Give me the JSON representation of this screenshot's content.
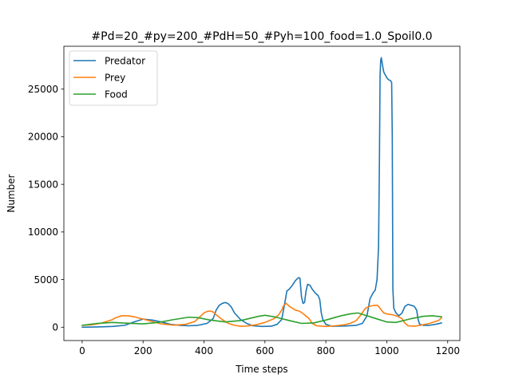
{
  "chart_data": {
    "type": "line",
    "title": "#Pd=20_#py=200_#PdH=50_#Pyh=100_food=1.0_Spoil0.0",
    "xlabel": "Time steps",
    "ylabel": "Number",
    "xlim": [
      -60,
      1240
    ],
    "ylim": [
      -1400,
      29500
    ],
    "x_ticks": [
      0,
      200,
      400,
      600,
      800,
      1000,
      1200
    ],
    "y_ticks": [
      0,
      5000,
      10000,
      15000,
      20000,
      25000
    ],
    "grid": false,
    "legend_position": "upper left",
    "series": [
      {
        "name": "Predator",
        "color": "#1f77b4",
        "points": [
          [
            0,
            0
          ],
          [
            50,
            30
          ],
          [
            100,
            80
          ],
          [
            140,
            200
          ],
          [
            170,
            550
          ],
          [
            200,
            850
          ],
          [
            230,
            750
          ],
          [
            260,
            550
          ],
          [
            290,
            300
          ],
          [
            320,
            200
          ],
          [
            350,
            150
          ],
          [
            380,
            200
          ],
          [
            410,
            400
          ],
          [
            430,
            900
          ],
          [
            440,
            1800
          ],
          [
            450,
            2300
          ],
          [
            460,
            2500
          ],
          [
            470,
            2600
          ],
          [
            480,
            2450
          ],
          [
            490,
            2100
          ],
          [
            500,
            1500
          ],
          [
            520,
            800
          ],
          [
            540,
            400
          ],
          [
            560,
            150
          ],
          [
            590,
            80
          ],
          [
            620,
            100
          ],
          [
            640,
            300
          ],
          [
            655,
            800
          ],
          [
            665,
            2500
          ],
          [
            672,
            3800
          ],
          [
            680,
            4000
          ],
          [
            690,
            4400
          ],
          [
            700,
            4900
          ],
          [
            710,
            5200
          ],
          [
            715,
            5150
          ],
          [
            720,
            3200
          ],
          [
            725,
            2500
          ],
          [
            730,
            2600
          ],
          [
            735,
            3800
          ],
          [
            740,
            4500
          ],
          [
            748,
            4400
          ],
          [
            755,
            4000
          ],
          [
            765,
            3600
          ],
          [
            775,
            3300
          ],
          [
            780,
            2900
          ],
          [
            785,
            1500
          ],
          [
            790,
            800
          ],
          [
            800,
            300
          ],
          [
            820,
            100
          ],
          [
            860,
            120
          ],
          [
            900,
            200
          ],
          [
            920,
            400
          ],
          [
            935,
            1200
          ],
          [
            945,
            3000
          ],
          [
            955,
            3600
          ],
          [
            962,
            3900
          ],
          [
            968,
            5000
          ],
          [
            973,
            8500
          ],
          [
            976,
            18000
          ],
          [
            978,
            26500
          ],
          [
            980,
            28000
          ],
          [
            982,
            28300
          ],
          [
            986,
            27500
          ],
          [
            990,
            26800
          ],
          [
            995,
            26500
          ],
          [
            1000,
            26200
          ],
          [
            1005,
            26000
          ],
          [
            1012,
            25900
          ],
          [
            1016,
            25700
          ],
          [
            1018,
            20000
          ],
          [
            1020,
            4000
          ],
          [
            1023,
            2000
          ],
          [
            1030,
            1500
          ],
          [
            1040,
            1200
          ],
          [
            1050,
            1500
          ],
          [
            1060,
            2200
          ],
          [
            1070,
            2400
          ],
          [
            1080,
            2300
          ],
          [
            1090,
            2200
          ],
          [
            1098,
            1800
          ],
          [
            1103,
            800
          ],
          [
            1108,
            300
          ],
          [
            1120,
            200
          ],
          [
            1140,
            200
          ],
          [
            1160,
            300
          ],
          [
            1180,
            450
          ]
        ]
      },
      {
        "name": "Prey",
        "color": "#ff7f0e",
        "points": [
          [
            0,
            200
          ],
          [
            30,
            250
          ],
          [
            60,
            400
          ],
          [
            80,
            600
          ],
          [
            100,
            800
          ],
          [
            110,
            1000
          ],
          [
            130,
            1200
          ],
          [
            150,
            1200
          ],
          [
            170,
            1100
          ],
          [
            200,
            850
          ],
          [
            230,
            600
          ],
          [
            260,
            350
          ],
          [
            300,
            220
          ],
          [
            340,
            300
          ],
          [
            370,
            600
          ],
          [
            390,
            1200
          ],
          [
            400,
            1500
          ],
          [
            410,
            1650
          ],
          [
            420,
            1700
          ],
          [
            430,
            1600
          ],
          [
            440,
            1300
          ],
          [
            460,
            800
          ],
          [
            480,
            400
          ],
          [
            500,
            200
          ],
          [
            520,
            100
          ],
          [
            540,
            120
          ],
          [
            570,
            250
          ],
          [
            600,
            500
          ],
          [
            630,
            900
          ],
          [
            645,
            1300
          ],
          [
            655,
            1800
          ],
          [
            662,
            2300
          ],
          [
            670,
            2500
          ],
          [
            680,
            2200
          ],
          [
            690,
            2000
          ],
          [
            700,
            1800
          ],
          [
            712,
            1700
          ],
          [
            720,
            1550
          ],
          [
            730,
            1300
          ],
          [
            745,
            900
          ],
          [
            755,
            400
          ],
          [
            770,
            150
          ],
          [
            800,
            80
          ],
          [
            830,
            150
          ],
          [
            860,
            250
          ],
          [
            880,
            400
          ],
          [
            900,
            700
          ],
          [
            915,
            1300
          ],
          [
            930,
            2000
          ],
          [
            945,
            2200
          ],
          [
            960,
            2300
          ],
          [
            970,
            2300
          ],
          [
            980,
            1900
          ],
          [
            990,
            1500
          ],
          [
            1000,
            1400
          ],
          [
            1010,
            1350
          ],
          [
            1020,
            1300
          ],
          [
            1035,
            1150
          ],
          [
            1050,
            900
          ],
          [
            1060,
            400
          ],
          [
            1070,
            150
          ],
          [
            1090,
            100
          ],
          [
            1110,
            200
          ],
          [
            1140,
            400
          ],
          [
            1170,
            700
          ],
          [
            1180,
            1000
          ]
        ]
      },
      {
        "name": "Food",
        "color": "#2ca02c",
        "points": [
          [
            0,
            200
          ],
          [
            50,
            400
          ],
          [
            100,
            500
          ],
          [
            150,
            420
          ],
          [
            200,
            350
          ],
          [
            250,
            500
          ],
          [
            300,
            800
          ],
          [
            350,
            1050
          ],
          [
            380,
            1000
          ],
          [
            420,
            750
          ],
          [
            470,
            550
          ],
          [
            520,
            700
          ],
          [
            580,
            1150
          ],
          [
            600,
            1250
          ],
          [
            630,
            1100
          ],
          [
            680,
            700
          ],
          [
            720,
            400
          ],
          [
            760,
            450
          ],
          [
            800,
            750
          ],
          [
            850,
            1200
          ],
          [
            880,
            1400
          ],
          [
            905,
            1500
          ],
          [
            920,
            1350
          ],
          [
            960,
            950
          ],
          [
            1000,
            550
          ],
          [
            1030,
            500
          ],
          [
            1080,
            900
          ],
          [
            1120,
            1150
          ],
          [
            1150,
            1200
          ],
          [
            1180,
            1100
          ]
        ]
      }
    ]
  }
}
